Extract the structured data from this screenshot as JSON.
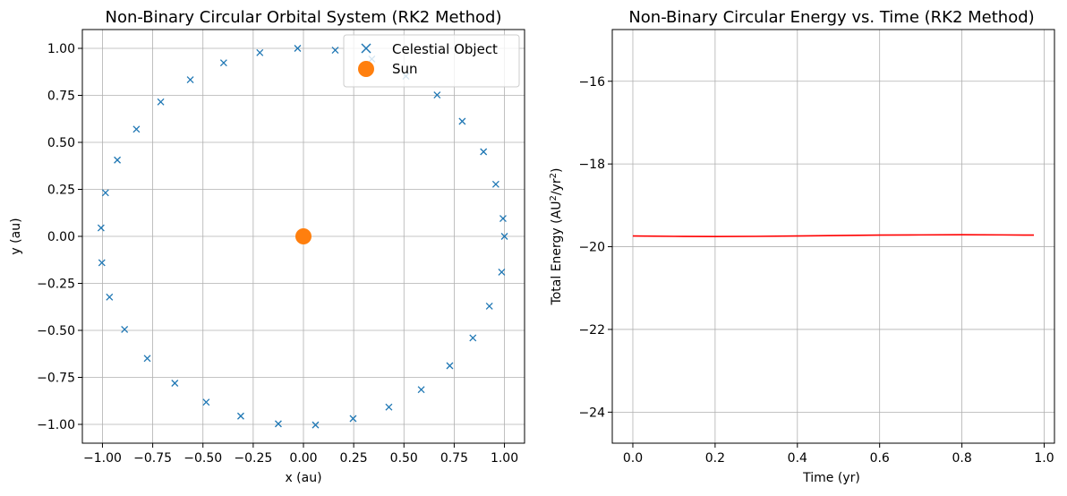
{
  "chart_data": [
    {
      "type": "scatter",
      "title": "Non-Binary Circular Orbital System (RK2 Method)",
      "xlabel": "x (au)",
      "ylabel": "y (au)",
      "xlim": [
        -1.1,
        1.1
      ],
      "ylim": [
        -1.1,
        1.1
      ],
      "xticks": [
        -1.0,
        -0.75,
        -0.5,
        -0.25,
        0.0,
        0.25,
        0.5,
        0.75,
        1.0
      ],
      "xtick_labels": [
        "−1.00",
        "−0.75",
        "−0.50",
        "−0.25",
        "0.00",
        "0.25",
        "0.50",
        "0.75",
        "1.00"
      ],
      "yticks": [
        -1.0,
        -0.75,
        -0.5,
        -0.25,
        0.0,
        0.25,
        0.5,
        0.75,
        1.0
      ],
      "ytick_labels": [
        "−1.00",
        "−0.75",
        "−0.50",
        "−0.25",
        "0.00",
        "0.25",
        "0.50",
        "0.75",
        "1.00"
      ],
      "grid": true,
      "legend": "top-right",
      "series": [
        {
          "name": "Celestial Object",
          "marker": "x",
          "color": "#1f77b4",
          "points": [
            [
              1.0,
              0.0
            ],
            [
              0.993,
              0.095
            ],
            [
              0.957,
              0.277
            ],
            [
              0.896,
              0.45
            ],
            [
              0.79,
              0.612
            ],
            [
              0.665,
              0.752
            ],
            [
              0.51,
              0.852
            ],
            [
              0.34,
              0.943
            ],
            [
              0.158,
              0.99
            ],
            [
              -0.029,
              1.0
            ],
            [
              -0.217,
              0.977
            ],
            [
              -0.397,
              0.923
            ],
            [
              -0.563,
              0.833
            ],
            [
              -0.71,
              0.715
            ],
            [
              -0.831,
              0.57
            ],
            [
              -0.926,
              0.406
            ],
            [
              -0.985,
              0.232
            ],
            [
              -1.007,
              0.045
            ],
            [
              -1.003,
              -0.14
            ],
            [
              -0.965,
              -0.323
            ],
            [
              -0.89,
              -0.495
            ],
            [
              -0.777,
              -0.649
            ],
            [
              -0.64,
              -0.781
            ],
            [
              -0.484,
              -0.882
            ],
            [
              -0.312,
              -0.956
            ],
            [
              -0.125,
              -0.997
            ],
            [
              0.06,
              -1.003
            ],
            [
              0.247,
              -0.969
            ],
            [
              0.425,
              -0.908
            ],
            [
              0.586,
              -0.815
            ],
            [
              0.728,
              -0.688
            ],
            [
              0.843,
              -0.54
            ],
            [
              0.925,
              -0.371
            ],
            [
              0.986,
              -0.19
            ]
          ]
        },
        {
          "name": "Sun",
          "marker": "o",
          "color": "#ff7f0e",
          "points": [
            [
              0.0,
              0.0
            ]
          ]
        }
      ]
    },
    {
      "type": "line",
      "title": "Non-Binary Circular Energy vs. Time (RK2 Method)",
      "xlabel": "Time (yr)",
      "ylabel": "Total Energy (AU²/yr²)",
      "ylabel_parts": [
        "Total Energy (AU",
        "2",
        "/yr",
        "2",
        ")"
      ],
      "xlim": [
        -0.05,
        1.025
      ],
      "ylim": [
        -24.75,
        -14.75
      ],
      "xticks": [
        0.0,
        0.2,
        0.4,
        0.6,
        0.8,
        1.0
      ],
      "xtick_labels": [
        "0.0",
        "0.2",
        "0.4",
        "0.6",
        "0.8",
        "1.0"
      ],
      "yticks": [
        -24,
        -22,
        -20,
        -18,
        -16
      ],
      "ytick_labels": [
        "−24",
        "−22",
        "−20",
        "−18",
        "−16"
      ],
      "grid": true,
      "series": [
        {
          "color": "#ff0000",
          "x": [
            0.0,
            0.1,
            0.2,
            0.3,
            0.4,
            0.5,
            0.6,
            0.7,
            0.8,
            0.9,
            0.975
          ],
          "y": [
            -19.74,
            -19.75,
            -19.755,
            -19.75,
            -19.74,
            -19.73,
            -19.72,
            -19.715,
            -19.71,
            -19.715,
            -19.72
          ]
        }
      ]
    }
  ]
}
